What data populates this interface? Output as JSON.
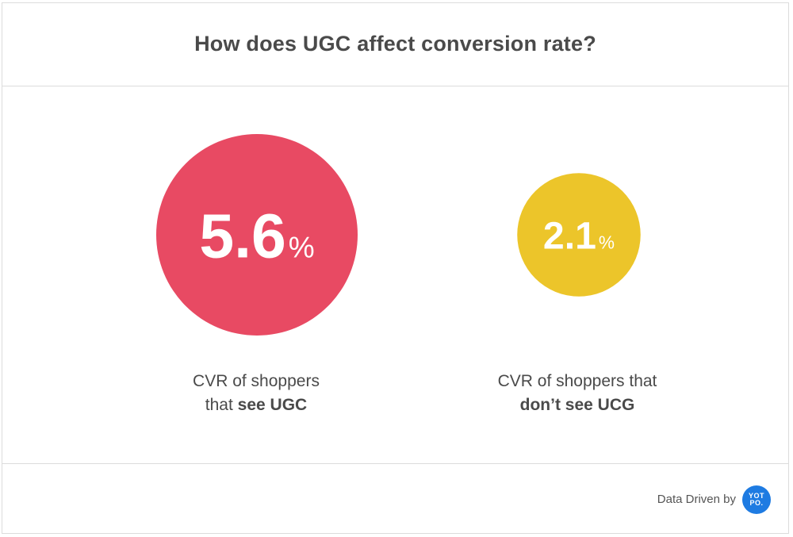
{
  "header": {
    "title": "How does UGC affect conversion rate?"
  },
  "chart_data": {
    "type": "bubble",
    "title": "How does UGC affect conversion rate?",
    "unit": "%",
    "items": [
      {
        "value": 5.6,
        "value_label": "5.6",
        "unit_label": "%",
        "color": "#e84a63",
        "caption_line1": "CVR of shoppers",
        "caption_line2_prefix": "that ",
        "caption_line2_bold": "see UGC"
      },
      {
        "value": 2.1,
        "value_label": "2.1",
        "unit_label": "%",
        "color": "#ecc52a",
        "caption_line1": "CVR of shoppers that",
        "caption_line2_prefix": "",
        "caption_line2_bold": "don’t see UCG"
      }
    ]
  },
  "footer": {
    "credit": "Data Driven by",
    "logo_text": "YOT PO.",
    "logo_color": "#1e7be2"
  }
}
